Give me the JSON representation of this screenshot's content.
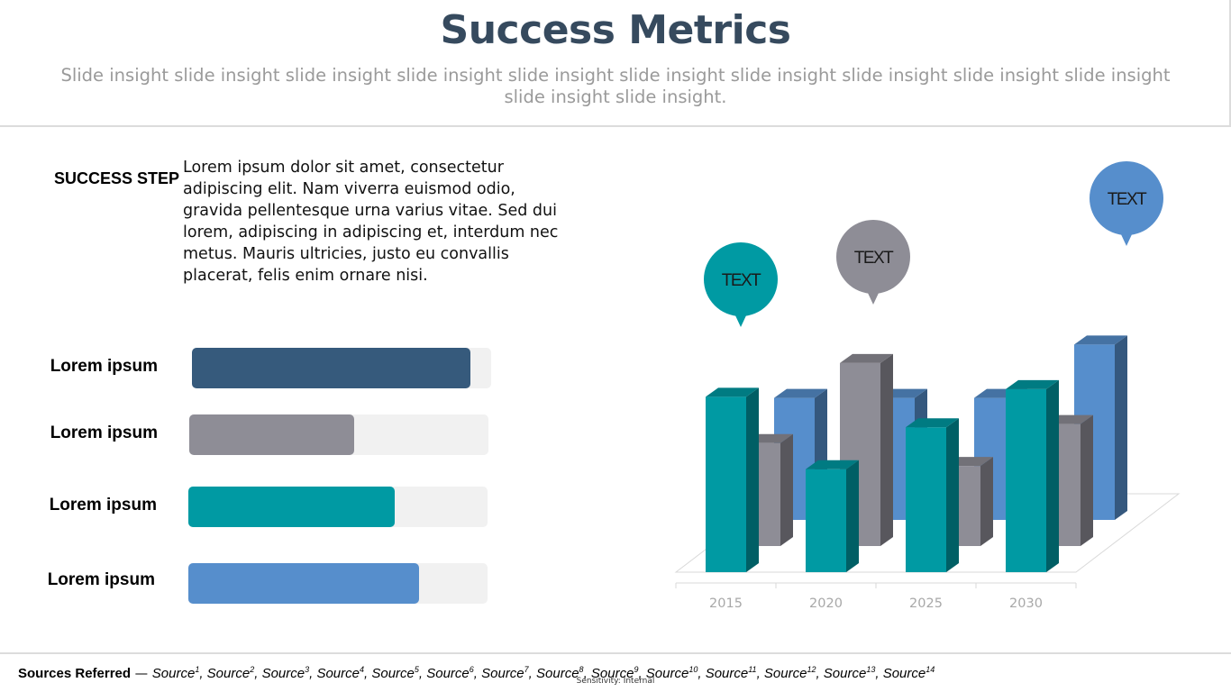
{
  "title": "Success Metrics",
  "subtitle": "Slide insight slide insight slide insight slide insight slide insight slide insight slide insight slide insight slide insight slide insight slide insight slide insight.",
  "success_step": {
    "label": "SUCCESS STEP",
    "body": "Lorem ipsum dolor sit amet, consectetur adipiscing elit. Nam viverra euismod odio, gravida pellentesque urna varius vitae. Sed dui lorem, adipiscing in adipiscing et, interdum nec metus. Mauris ultricies, justo eu convallis placerat, felis enim ornare nisi."
  },
  "progress_bars": [
    {
      "label": "Lorem ipsum",
      "fraction": 0.93,
      "color": "#365a7c"
    },
    {
      "label": "Lorem ipsum",
      "fraction": 0.55,
      "color": "#8e8d96"
    },
    {
      "label": "Lorem ipsum",
      "fraction": 0.69,
      "color": "#009aa3"
    },
    {
      "label": "Lorem ipsum",
      "fraction": 0.77,
      "color": "#568ecc"
    }
  ],
  "chart_data": {
    "type": "bar",
    "categories": [
      "2015",
      "2020",
      "2025",
      "2030"
    ],
    "series": [
      {
        "values": [
          160,
          160,
          160,
          230
        ],
        "color": "#568ecc"
      },
      {
        "values": [
          135,
          240,
          105,
          160
        ],
        "color": "#8e8d96"
      },
      {
        "values": [
          230,
          135,
          190,
          240
        ],
        "color": "#009aa3"
      }
    ],
    "ylim": [
      0,
      260
    ],
    "grid": false,
    "callouts": [
      {
        "text": "TEXT",
        "color": "#009aa3"
      },
      {
        "text": "TEXT",
        "color": "#8e8d96"
      },
      {
        "text": "TEXT",
        "color": "#568ecc"
      }
    ]
  },
  "footer": {
    "lead": "Sources Referred",
    "dash": " — ",
    "sources": [
      "Source",
      "Source",
      "Source",
      "Source",
      "Source",
      "Source",
      "Source",
      "Source",
      "Source",
      "Source",
      "Source",
      "Source",
      "Source",
      "Source"
    ],
    "sensitivity": "Sensitivity: Internal"
  }
}
